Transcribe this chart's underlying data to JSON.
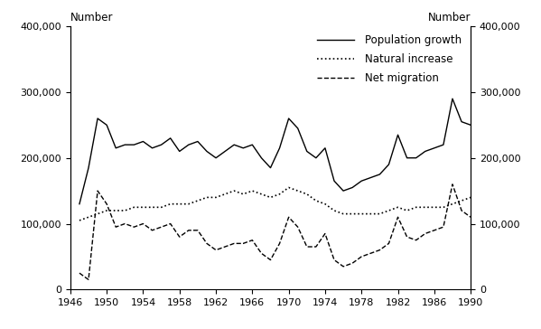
{
  "years": [
    1947,
    1948,
    1949,
    1950,
    1951,
    1952,
    1953,
    1954,
    1955,
    1956,
    1957,
    1958,
    1959,
    1960,
    1961,
    1962,
    1963,
    1964,
    1965,
    1966,
    1967,
    1968,
    1969,
    1970,
    1971,
    1972,
    1973,
    1974,
    1975,
    1976,
    1977,
    1978,
    1979,
    1980,
    1981,
    1982,
    1983,
    1984,
    1985,
    1986,
    1987,
    1988,
    1989,
    1990
  ],
  "population_growth": [
    130000,
    185000,
    260000,
    250000,
    215000,
    220000,
    220000,
    225000,
    215000,
    220000,
    230000,
    210000,
    220000,
    225000,
    210000,
    200000,
    210000,
    220000,
    215000,
    220000,
    200000,
    185000,
    215000,
    260000,
    245000,
    210000,
    200000,
    215000,
    165000,
    150000,
    155000,
    165000,
    170000,
    175000,
    190000,
    235000,
    200000,
    200000,
    210000,
    215000,
    220000,
    290000,
    255000,
    250000
  ],
  "natural_increase": [
    105000,
    110000,
    115000,
    120000,
    120000,
    120000,
    125000,
    125000,
    125000,
    125000,
    130000,
    130000,
    130000,
    135000,
    140000,
    140000,
    145000,
    150000,
    145000,
    150000,
    145000,
    140000,
    145000,
    155000,
    150000,
    145000,
    135000,
    130000,
    120000,
    115000,
    115000,
    115000,
    115000,
    115000,
    120000,
    125000,
    120000,
    125000,
    125000,
    125000,
    125000,
    130000,
    135000,
    140000
  ],
  "net_migration": [
    25000,
    15000,
    150000,
    130000,
    95000,
    100000,
    95000,
    100000,
    90000,
    95000,
    100000,
    80000,
    90000,
    90000,
    70000,
    60000,
    65000,
    70000,
    70000,
    75000,
    55000,
    45000,
    70000,
    110000,
    95000,
    65000,
    65000,
    85000,
    45000,
    35000,
    40000,
    50000,
    55000,
    60000,
    70000,
    110000,
    80000,
    75000,
    85000,
    90000,
    95000,
    160000,
    120000,
    110000
  ],
  "ylim": [
    0,
    400000
  ],
  "yticks": [
    0,
    100000,
    200000,
    300000,
    400000
  ],
  "xticks": [
    1946,
    1950,
    1954,
    1958,
    1962,
    1966,
    1970,
    1974,
    1978,
    1982,
    1986,
    1990
  ],
  "ylabel_label": "Number",
  "legend_labels": [
    "Population growth",
    "Natural increase",
    "Net migration"
  ],
  "line_color": "#000000",
  "background_color": "#ffffff"
}
